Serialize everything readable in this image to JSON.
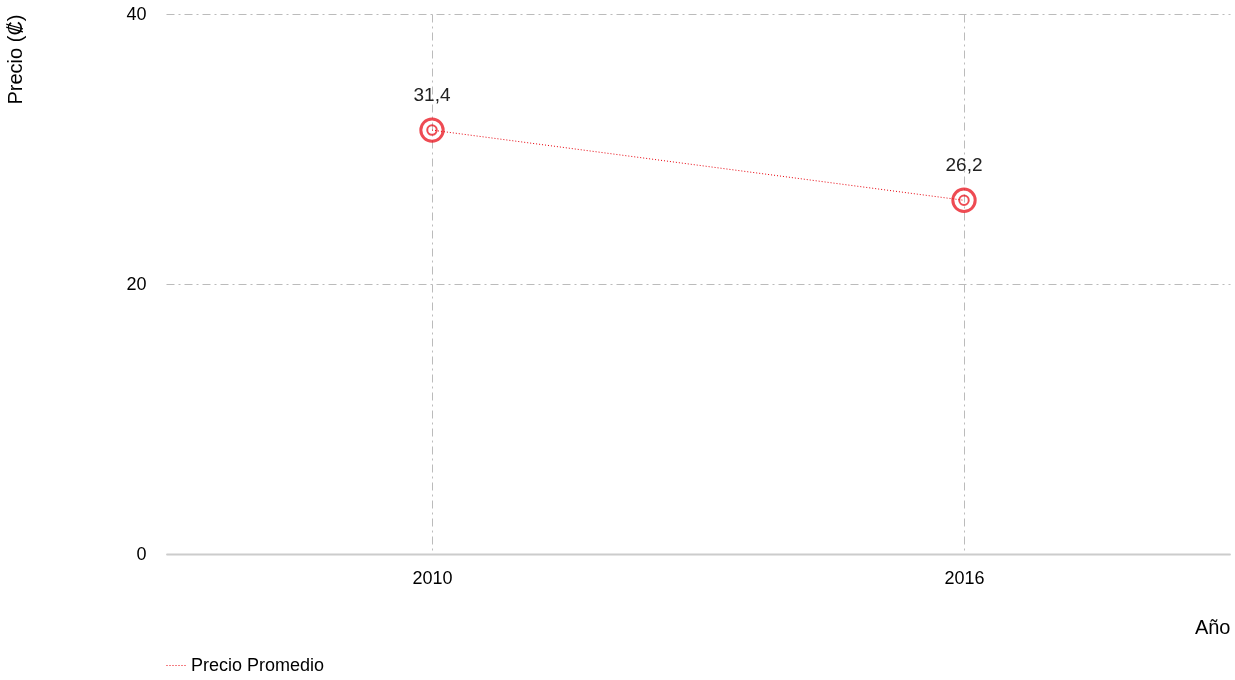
{
  "chart_data": {
    "type": "line",
    "categories": [
      "2010",
      "2016"
    ],
    "series": [
      {
        "name": "Precio Promedio",
        "color": "#e8000b",
        "values": [
          31.4,
          26.2
        ],
        "value_labels": [
          "31,4",
          "26,2"
        ]
      }
    ],
    "xlabel": "Año",
    "ylabel": "Precio (₡)",
    "ylim": [
      0,
      40
    ],
    "yticks": [
      0,
      20,
      40
    ],
    "grid": true,
    "legend": "bottom",
    "marker": "circle",
    "line_style": "dotted"
  }
}
